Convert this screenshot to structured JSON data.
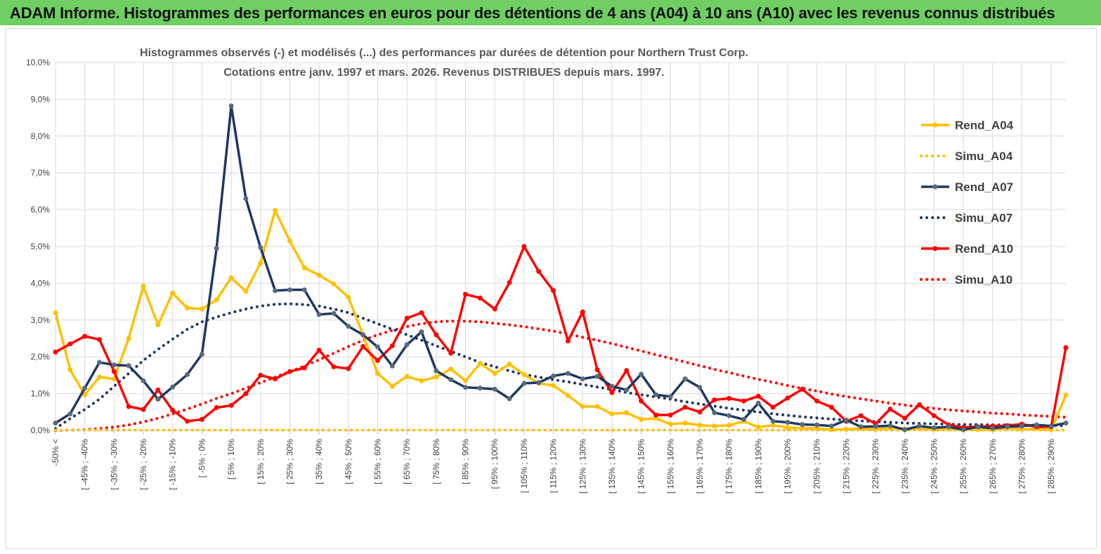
{
  "banner": {
    "text": "ADAM Informe. Histogrammes des performances en euros pour des détentions de 4 ans (A04) à 10 ans (A10) avec les revenus connus distribués"
  },
  "colors": {
    "banner_bg": "#6fcf63",
    "A04": "#ffc000",
    "A07": "#1f3864",
    "A10": "#ff0000",
    "A07_marker": "#5a6a7a"
  },
  "chart_data": {
    "type": "line",
    "title_line1": "Histogrammes observés (-) et modélisés (...) des performances par durées de détention pour Northern Trust Corp.",
    "title_line2": "Cotations entre janv. 1997 et mars. 2026. Revenus DISTRIBUES depuis mars. 1997.",
    "xlabel": "",
    "ylabel": "",
    "ylim": [
      0,
      10
    ],
    "y_ticks": [
      "0,0%",
      "1,0%",
      "2,0%",
      "3,0%",
      "4,0%",
      "5,0%",
      "6,0%",
      "7,0%",
      "8,0%",
      "9,0%",
      "10,0%"
    ],
    "grid": true,
    "legend_position": "right",
    "x_count": 70,
    "x_tick_labels": [
      "-50% <",
      "[ -45% ; -40%",
      "[ -35% ; -30%",
      "[ -25% ; -20%",
      "[ -15% ; -10%",
      "[ -5% ; 0%",
      "[ 5% ; 10%",
      "[ 15% ; 20%",
      "[ 25% ; 30%",
      "[ 35% ; 40%",
      "[ 45% ; 50%",
      "[ 55% ; 60%",
      "[ 65% ; 70%",
      "[ 75% ; 80%",
      "[ 85% ; 90%",
      "[ 95% ; 100%",
      "[ 105% ; 110%",
      "[ 115% ; 120%",
      "[ 125% ; 130%",
      "[ 135% ; 140%",
      "[ 145% ; 150%",
      "[ 155% ; 160%",
      "[ 165% ; 170%",
      "[ 175% ; 180%",
      "[ 185% ; 190%",
      "[ 195% ; 200%",
      "[ 205% ; 210%",
      "[ 215% ; 220%",
      "[ 225% ; 230%",
      "[ 235% ; 240%",
      "[ 245% ; 250%",
      "[ 255% ; 260%",
      "[ 265% ; 270%",
      "[ 275% ; 280%",
      "[ 285% ; 290%"
    ],
    "series": [
      {
        "name": "Rend_A04",
        "style": "solid",
        "color": "#ffc000",
        "marker_color": "#ffc000",
        "values": [
          3.2,
          1.65,
          0.97,
          1.45,
          1.4,
          2.5,
          3.92,
          2.87,
          3.73,
          3.33,
          3.3,
          3.55,
          4.15,
          3.78,
          4.55,
          5.98,
          5.15,
          4.42,
          4.22,
          3.98,
          3.62,
          2.6,
          1.55,
          1.2,
          1.47,
          1.35,
          1.45,
          1.67,
          1.35,
          1.82,
          1.55,
          1.8,
          1.52,
          1.28,
          1.22,
          0.95,
          0.65,
          0.65,
          0.45,
          0.48,
          0.3,
          0.33,
          0.17,
          0.2,
          0.14,
          0.12,
          0.14,
          0.25,
          0.09,
          0.14,
          0.08,
          0.06,
          0.06,
          0.02,
          0.03,
          0.06,
          0.03,
          0.07,
          0.04,
          0.05,
          0.03,
          0.04,
          0.03,
          0.02,
          0.02,
          0.07,
          0.03,
          0.05,
          0.02,
          0.96
        ]
      },
      {
        "name": "Simu_A04",
        "style": "dotted",
        "color": "#ffc000",
        "values": [
          0.01,
          0.01,
          0.01,
          0.01,
          0.01,
          0.01,
          0.01,
          0.01,
          0.01,
          0.01,
          0.01,
          0.01,
          0.01,
          0.01,
          0.01,
          0.01,
          0.01,
          0.01,
          0.01,
          0.01,
          0.01,
          0.01,
          0.01,
          0.01,
          0.01,
          0.01,
          0.01,
          0.01,
          0.01,
          0.01,
          0.01,
          0.01,
          0.01,
          0.01,
          0.01,
          0.01,
          0.01,
          0.01,
          0.01,
          0.01,
          0.01,
          0.01,
          0.01,
          0.01,
          0.01,
          0.01,
          0.01,
          0.01,
          0.01,
          0.01,
          0.01,
          0.01,
          0.01,
          0.01,
          0.01,
          0.01,
          0.01,
          0.01,
          0.01,
          0.01,
          0.01,
          0.01,
          0.01,
          0.01,
          0.01,
          0.01,
          0.01,
          0.01,
          0.01,
          0.01
        ]
      },
      {
        "name": "Rend_A07",
        "style": "solid",
        "color": "#1f3864",
        "marker_color": "#5a6a7a",
        "values": [
          0.2,
          0.45,
          1.15,
          1.85,
          1.78,
          1.76,
          1.35,
          0.85,
          1.18,
          1.52,
          2.07,
          4.95,
          8.82,
          6.3,
          4.97,
          3.8,
          3.82,
          3.82,
          3.15,
          3.18,
          2.83,
          2.6,
          2.27,
          1.75,
          2.33,
          2.68,
          1.62,
          1.38,
          1.17,
          1.15,
          1.12,
          0.86,
          1.28,
          1.3,
          1.48,
          1.55,
          1.4,
          1.47,
          1.2,
          1.1,
          1.53,
          0.97,
          0.92,
          1.4,
          1.17,
          0.48,
          0.4,
          0.3,
          0.74,
          0.25,
          0.22,
          0.16,
          0.15,
          0.12,
          0.28,
          0.1,
          0.11,
          0.13,
          0.02,
          0.12,
          0.07,
          0.1,
          0.02,
          0.1,
          0.06,
          0.1,
          0.12,
          0.15,
          0.12,
          0.2
        ]
      },
      {
        "name": "Simu_A07",
        "style": "dotted",
        "color": "#1f3864",
        "values": [
          0.05,
          0.32,
          0.57,
          0.85,
          1.2,
          1.55,
          1.9,
          2.2,
          2.48,
          2.75,
          2.95,
          3.08,
          3.2,
          3.3,
          3.38,
          3.43,
          3.44,
          3.42,
          3.38,
          3.3,
          3.2,
          3.05,
          2.9,
          2.75,
          2.6,
          2.45,
          2.3,
          2.15,
          2.0,
          1.85,
          1.73,
          1.62,
          1.52,
          1.45,
          1.38,
          1.32,
          1.25,
          1.18,
          1.11,
          1.03,
          0.97,
          0.91,
          0.85,
          0.78,
          0.72,
          0.66,
          0.6,
          0.55,
          0.5,
          0.45,
          0.41,
          0.37,
          0.34,
          0.31,
          0.28,
          0.26,
          0.24,
          0.22,
          0.2,
          0.19,
          0.18,
          0.17,
          0.16,
          0.16,
          0.15,
          0.15,
          0.14,
          0.14,
          0.13,
          0.13
        ]
      },
      {
        "name": "Rend_A10",
        "style": "solid",
        "color": "#ff0000",
        "marker_color": "#ff0000",
        "values": [
          2.13,
          2.35,
          2.56,
          2.47,
          1.6,
          0.65,
          0.57,
          1.1,
          0.55,
          0.25,
          0.3,
          0.62,
          0.68,
          1.0,
          1.5,
          1.4,
          1.6,
          1.7,
          2.18,
          1.73,
          1.68,
          2.28,
          1.9,
          2.3,
          3.05,
          3.2,
          2.6,
          2.1,
          3.7,
          3.6,
          3.3,
          4.02,
          5.0,
          4.32,
          3.8,
          2.43,
          3.22,
          1.65,
          1.03,
          1.63,
          0.8,
          0.42,
          0.42,
          0.63,
          0.5,
          0.83,
          0.87,
          0.8,
          0.93,
          0.63,
          0.88,
          1.12,
          0.8,
          0.63,
          0.25,
          0.4,
          0.18,
          0.58,
          0.33,
          0.7,
          0.4,
          0.15,
          0.08,
          0.1,
          0.12,
          0.13,
          0.17,
          0.1,
          0.1,
          2.25
        ]
      },
      {
        "name": "Simu_A10",
        "style": "dotted",
        "color": "#ff0000",
        "values": [
          0.0,
          0.01,
          0.02,
          0.05,
          0.09,
          0.15,
          0.23,
          0.33,
          0.45,
          0.58,
          0.72,
          0.87,
          1.0,
          1.15,
          1.3,
          1.45,
          1.6,
          1.75,
          1.92,
          2.1,
          2.28,
          2.45,
          2.6,
          2.72,
          2.82,
          2.9,
          2.95,
          2.97,
          2.97,
          2.95,
          2.91,
          2.87,
          2.82,
          2.76,
          2.7,
          2.62,
          2.53,
          2.45,
          2.36,
          2.26,
          2.16,
          2.06,
          1.96,
          1.86,
          1.76,
          1.66,
          1.57,
          1.48,
          1.39,
          1.31,
          1.22,
          1.14,
          1.07,
          0.99,
          0.92,
          0.86,
          0.8,
          0.74,
          0.69,
          0.64,
          0.6,
          0.56,
          0.53,
          0.5,
          0.47,
          0.45,
          0.42,
          0.4,
          0.38,
          0.36
        ]
      }
    ]
  }
}
